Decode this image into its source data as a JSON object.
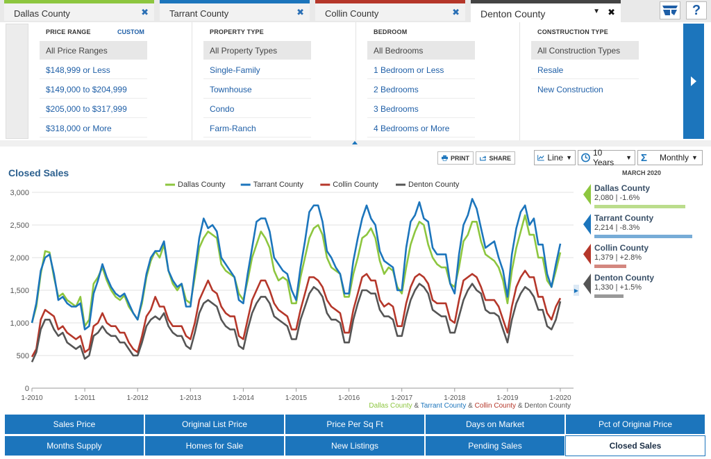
{
  "tabs": [
    {
      "label": "Dallas County",
      "color": "#8dc63f"
    },
    {
      "label": "Tarrant County",
      "color": "#1c75bc"
    },
    {
      "label": "Collin County",
      "color": "#b5372a"
    },
    {
      "label": "Denton County",
      "color": "#555555"
    }
  ],
  "filters": {
    "price": {
      "header": "PRICE RANGE",
      "custom": "CUSTOM",
      "options": [
        "All Price Ranges",
        "$148,999 or Less",
        "$149,000 to $204,999",
        "$205,000 to $317,999",
        "$318,000 or More"
      ]
    },
    "property": {
      "header": "PROPERTY TYPE",
      "options": [
        "All Property Types",
        "Single-Family",
        "Townhouse",
        "Condo",
        "Farm-Ranch"
      ]
    },
    "bedroom": {
      "header": "BEDROOM",
      "options": [
        "All Bedrooms",
        "1 Bedroom or Less",
        "2 Bedrooms",
        "3 Bedrooms",
        "4 Bedrooms or More"
      ]
    },
    "construction": {
      "header": "CONSTRUCTION TYPE",
      "options": [
        "All Construction Types",
        "Resale",
        "New Construction"
      ]
    }
  },
  "toolbar": {
    "print": "PRINT",
    "share": "SHARE",
    "chart_type": "Line",
    "range": "10 Years",
    "interval": "Monthly"
  },
  "side": {
    "month": "MARCH 2020",
    "items": [
      {
        "name": "Dallas County",
        "value": "2,080 | -1.6%",
        "color": "#8dc63f",
        "bar": 0.82
      },
      {
        "name": "Tarrant County",
        "value": "2,214 | -8.3%",
        "color": "#1c75bc",
        "bar": 0.88
      },
      {
        "name": "Collin County",
        "value": "1,379 | +2.8%",
        "color": "#b5372a",
        "bar": 0.29
      },
      {
        "name": "Denton County",
        "value": "1,330 | +1.5%",
        "color": "#555555",
        "bar": 0.26
      }
    ]
  },
  "metrics": [
    [
      "Sales Price",
      "Original List Price",
      "Price Per Sq Ft",
      "Days on Market",
      "Pct of Original Price"
    ],
    [
      "Months Supply",
      "Homes for Sale",
      "New Listings",
      "Pending Sales",
      "Closed Sales"
    ]
  ],
  "active_metric": "Closed Sales",
  "chart_data": {
    "type": "line",
    "title": "Closed Sales",
    "x_ticks": [
      "1-2010",
      "1-2011",
      "1-2012",
      "1-2013",
      "1-2014",
      "1-2015",
      "1-2016",
      "1-2017",
      "1-2018",
      "1-2019",
      "1-2020"
    ],
    "y_ticks": [
      0,
      500,
      1000,
      1500,
      2000,
      2500,
      3000
    ],
    "ylim": [
      0,
      3000
    ],
    "legend_placement": "top",
    "footer_series": [
      "Dallas County",
      "Tarrant County",
      "Collin County",
      "Denton County"
    ],
    "footer_sep": "&",
    "series": [
      {
        "name": "Dallas County",
        "color": "#8dc63f",
        "values": [
          1000,
          1250,
          1750,
          2100,
          2080,
          1700,
          1400,
          1450,
          1350,
          1300,
          1250,
          1400,
          950,
          1050,
          1600,
          1700,
          1850,
          1650,
          1500,
          1400,
          1350,
          1420,
          1250,
          1150,
          1050,
          1300,
          1700,
          1950,
          2100,
          2000,
          2200,
          1800,
          1600,
          1500,
          1600,
          1350,
          1300,
          1700,
          2150,
          2300,
          2400,
          2350,
          2300,
          1900,
          1800,
          1750,
          1700,
          1450,
          1350,
          1650,
          2000,
          2200,
          2400,
          2300,
          2150,
          1800,
          1650,
          1700,
          1650,
          1300,
          1300,
          1700,
          2000,
          2300,
          2450,
          2500,
          2350,
          2000,
          1850,
          1800,
          1750,
          1400,
          1400,
          1750,
          2000,
          2300,
          2350,
          2450,
          2300,
          1950,
          1750,
          1850,
          1800,
          1550,
          1450,
          1850,
          2200,
          2400,
          2550,
          2500,
          2200,
          2000,
          1900,
          1850,
          1850,
          1600,
          1550,
          1850,
          2250,
          2350,
          2550,
          2550,
          2250,
          2050,
          2000,
          1950,
          1850,
          1650,
          1300,
          1800,
          2150,
          2400,
          2650,
          2350,
          2350,
          2000,
          2000,
          1650,
          1550,
          1800,
          2080
        ]
      },
      {
        "name": "Tarrant County",
        "color": "#1c75bc",
        "values": [
          1000,
          1300,
          1800,
          2000,
          2050,
          1750,
          1350,
          1400,
          1300,
          1250,
          1250,
          1300,
          900,
          950,
          1450,
          1650,
          1900,
          1700,
          1550,
          1450,
          1400,
          1450,
          1300,
          1150,
          1050,
          1350,
          1750,
          2000,
          2100,
          2100,
          2250,
          1800,
          1650,
          1550,
          1600,
          1250,
          1250,
          1800,
          2300,
          2600,
          2450,
          2500,
          2400,
          2000,
          1900,
          1800,
          1700,
          1350,
          1300,
          1750,
          2150,
          2550,
          2600,
          2600,
          2400,
          2000,
          1900,
          1800,
          1750,
          1500,
          1350,
          1850,
          2250,
          2700,
          2800,
          2800,
          2550,
          2100,
          2000,
          1850,
          1750,
          1450,
          1450,
          1950,
          2300,
          2600,
          2800,
          2600,
          2500,
          2100,
          1950,
          1900,
          1850,
          1500,
          1500,
          2150,
          2550,
          2650,
          2850,
          2600,
          2550,
          2150,
          2050,
          2050,
          2050,
          1600,
          1450,
          2050,
          2500,
          2650,
          2900,
          2750,
          2450,
          2150,
          2200,
          2250,
          2000,
          1800,
          1400,
          2050,
          2450,
          2700,
          2800,
          2500,
          2600,
          2200,
          2200,
          1750,
          1550,
          1900,
          2214
        ]
      },
      {
        "name": "Collin County",
        "color": "#b5372a",
        "values": [
          480,
          600,
          1050,
          1200,
          1150,
          1100,
          900,
          950,
          850,
          800,
          750,
          800,
          550,
          600,
          950,
          1000,
          1150,
          1000,
          950,
          950,
          850,
          850,
          700,
          600,
          550,
          800,
          1100,
          1200,
          1400,
          1250,
          1250,
          1050,
          950,
          950,
          950,
          800,
          750,
          1000,
          1350,
          1500,
          1650,
          1500,
          1450,
          1250,
          1150,
          1100,
          1100,
          800,
          750,
          1050,
          1350,
          1500,
          1650,
          1650,
          1500,
          1300,
          1200,
          1150,
          1100,
          900,
          900,
          1200,
          1450,
          1700,
          1700,
          1650,
          1550,
          1350,
          1250,
          1200,
          1150,
          850,
          850,
          1200,
          1450,
          1700,
          1750,
          1650,
          1650,
          1350,
          1250,
          1300,
          1250,
          950,
          950,
          1300,
          1550,
          1700,
          1750,
          1700,
          1600,
          1350,
          1300,
          1300,
          1300,
          1050,
          1000,
          1350,
          1650,
          1700,
          1750,
          1700,
          1550,
          1350,
          1350,
          1350,
          1250,
          1050,
          850,
          1250,
          1550,
          1700,
          1800,
          1700,
          1700,
          1400,
          1400,
          1150,
          1050,
          1250,
          1379
        ]
      },
      {
        "name": "Denton County",
        "color": "#555555",
        "values": [
          400,
          550,
          900,
          1050,
          1050,
          900,
          800,
          850,
          700,
          650,
          600,
          650,
          450,
          500,
          800,
          850,
          950,
          850,
          800,
          800,
          700,
          700,
          600,
          500,
          500,
          700,
          950,
          1050,
          1100,
          1050,
          1150,
          950,
          850,
          800,
          800,
          650,
          600,
          850,
          1150,
          1300,
          1350,
          1300,
          1250,
          1050,
          950,
          900,
          900,
          650,
          600,
          900,
          1150,
          1300,
          1400,
          1400,
          1300,
          1100,
          1050,
          1000,
          950,
          750,
          750,
          1050,
          1250,
          1450,
          1550,
          1500,
          1400,
          1150,
          1050,
          1050,
          1000,
          700,
          700,
          1050,
          1300,
          1500,
          1500,
          1450,
          1450,
          1200,
          1100,
          1100,
          1050,
          800,
          800,
          1100,
          1350,
          1500,
          1600,
          1550,
          1450,
          1200,
          1150,
          1100,
          1100,
          850,
          850,
          1100,
          1350,
          1500,
          1600,
          1500,
          1450,
          1200,
          1150,
          1150,
          1100,
          900,
          700,
          1050,
          1300,
          1450,
          1550,
          1500,
          1400,
          1200,
          1200,
          950,
          900,
          1050,
          1330
        ]
      }
    ]
  }
}
